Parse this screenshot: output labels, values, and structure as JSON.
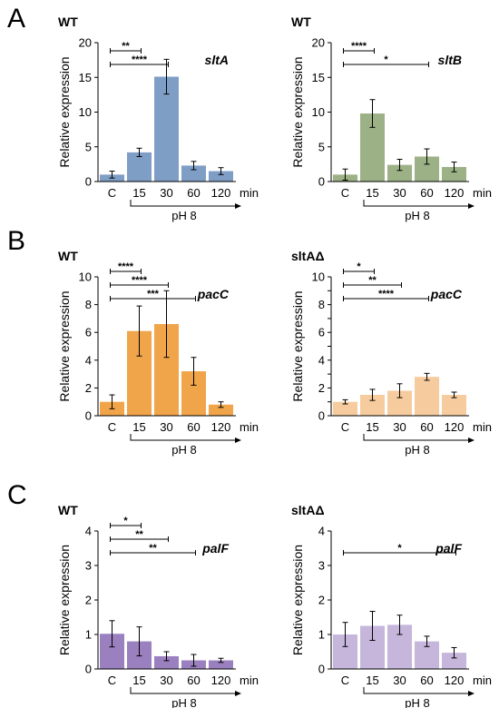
{
  "figure": {
    "panel_letters": [
      "A",
      "B",
      "C"
    ],
    "x_unit": "min",
    "condition_label": "pH 8",
    "ylabel": "Relative expression"
  },
  "chart_data": [
    {
      "type": "bar",
      "panel": "A",
      "strain": "WT",
      "gene": "sltA",
      "color": "#7f9ec6",
      "categories": [
        "C",
        "15",
        "30",
        "60",
        "120"
      ],
      "values": [
        1.0,
        4.2,
        15.1,
        2.3,
        1.5
      ],
      "errors": [
        0.5,
        0.6,
        2.5,
        0.6,
        0.5
      ],
      "ylim": [
        0,
        20
      ],
      "yticks": [
        0,
        5,
        10,
        15,
        20
      ],
      "comparisons": [
        {
          "from": "C",
          "to": "15",
          "label": "**"
        },
        {
          "from": "C",
          "to": "30",
          "label": "****"
        }
      ]
    },
    {
      "type": "bar",
      "panel": "A",
      "strain": "WT",
      "gene": "sltB",
      "color": "#9db186",
      "categories": [
        "C",
        "15",
        "30",
        "60",
        "120"
      ],
      "values": [
        1.0,
        9.8,
        2.4,
        3.6,
        2.1
      ],
      "errors": [
        0.8,
        2.0,
        0.8,
        1.1,
        0.7
      ],
      "ylim": [
        0,
        20
      ],
      "yticks": [
        0,
        5,
        10,
        15,
        20
      ],
      "comparisons": [
        {
          "from": "C",
          "to": "15",
          "label": "****"
        },
        {
          "from": "C",
          "to": "60",
          "label": "*"
        }
      ]
    },
    {
      "type": "bar",
      "panel": "B",
      "strain": "WT",
      "gene": "pacC",
      "color": "#f1a54a",
      "categories": [
        "C",
        "15",
        "30",
        "60",
        "120"
      ],
      "values": [
        1.0,
        6.1,
        6.6,
        3.2,
        0.8
      ],
      "errors": [
        0.5,
        1.8,
        2.4,
        1.0,
        0.2
      ],
      "ylim": [
        0,
        10
      ],
      "yticks": [
        0,
        2,
        4,
        6,
        8,
        10
      ],
      "comparisons": [
        {
          "from": "C",
          "to": "15",
          "label": "****"
        },
        {
          "from": "C",
          "to": "30",
          "label": "****"
        },
        {
          "from": "C",
          "to": "60",
          "label": "***"
        }
      ]
    },
    {
      "type": "bar",
      "panel": "B",
      "strain": "sltAΔ",
      "gene": "pacC",
      "color": "#f6cc9e",
      "categories": [
        "C",
        "15",
        "30",
        "60",
        "120"
      ],
      "values": [
        1.0,
        1.5,
        1.8,
        2.8,
        1.5
      ],
      "errors": [
        0.15,
        0.4,
        0.5,
        0.25,
        0.2
      ],
      "ylim": [
        0,
        10
      ],
      "yticks": [
        0,
        1,
        2,
        3,
        4,
        5,
        6,
        7,
        8,
        9,
        10
      ],
      "yticklabels_every": 2,
      "comparisons": [
        {
          "from": "C",
          "to": "15",
          "label": "*"
        },
        {
          "from": "C",
          "to": "30",
          "label": "**"
        },
        {
          "from": "C",
          "to": "60",
          "label": "****"
        }
      ]
    },
    {
      "type": "bar",
      "panel": "C",
      "strain": "WT",
      "gene": "palF",
      "color": "#9b80bf",
      "categories": [
        "C",
        "15",
        "30",
        "60",
        "120"
      ],
      "values": [
        1.02,
        0.8,
        0.37,
        0.25,
        0.25
      ],
      "errors": [
        0.38,
        0.42,
        0.13,
        0.17,
        0.06
      ],
      "ylim": [
        0,
        4
      ],
      "yticks": [
        0,
        1,
        2,
        3,
        4
      ],
      "comparisons": [
        {
          "from": "C",
          "to": "15",
          "label": "*"
        },
        {
          "from": "C",
          "to": "30",
          "label": "**"
        },
        {
          "from": "C",
          "to": "60",
          "label": "**"
        }
      ]
    },
    {
      "type": "bar",
      "panel": "C",
      "strain": "sltAΔ",
      "gene": "palF",
      "color": "#c6b6dc",
      "categories": [
        "C",
        "15",
        "30",
        "60",
        "120"
      ],
      "values": [
        1.0,
        1.25,
        1.28,
        0.8,
        0.47
      ],
      "errors": [
        0.35,
        0.42,
        0.28,
        0.15,
        0.15
      ],
      "ylim": [
        0,
        4
      ],
      "yticks": [
        0,
        1,
        2,
        3,
        4
      ],
      "comparisons": [
        {
          "from": "C",
          "to": "120",
          "label": "*"
        }
      ]
    }
  ]
}
